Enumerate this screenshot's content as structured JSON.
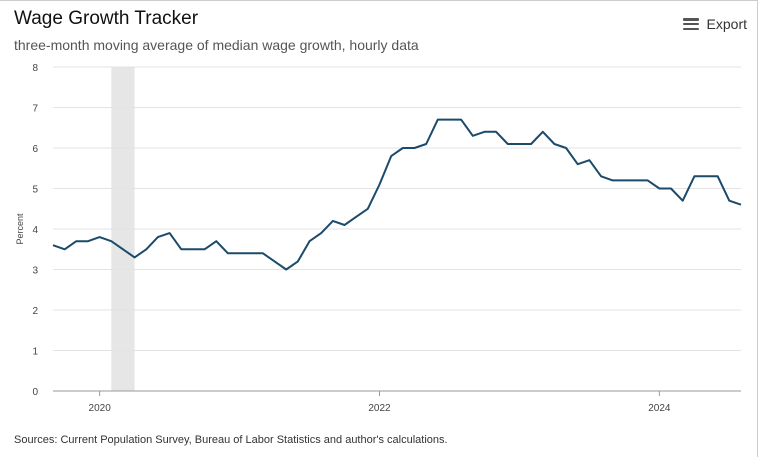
{
  "header": {
    "title": "Wage Growth Tracker",
    "subtitle": "three-month moving average of median wage growth, hourly data",
    "export_label": "Export",
    "export_icon": "hamburger-menu-icon"
  },
  "footer": {
    "source": "Sources: Current Population Survey, Bureau of Labor Statistics and author's calculations."
  },
  "chart_data": {
    "type": "line",
    "title": "Wage Growth Tracker",
    "subtitle": "three-month moving average of median wage growth, hourly data",
    "ylabel": "Percent",
    "xlabel": "",
    "ylim": [
      0,
      8
    ],
    "yticks": [
      0,
      1,
      2,
      3,
      4,
      5,
      6,
      7,
      8
    ],
    "xticks": [
      "2020",
      "2022",
      "2024"
    ],
    "xrange": [
      "2019-09",
      "2024-08"
    ],
    "grid": true,
    "line_color": "#1b4a6b",
    "shaded_band": {
      "start": "2020-02",
      "end": "2020-04",
      "color": "#e6e6e6"
    },
    "start_month": "2019-09",
    "values": [
      3.6,
      3.5,
      3.7,
      3.7,
      3.8,
      3.7,
      3.5,
      3.3,
      3.5,
      3.8,
      3.9,
      3.5,
      3.5,
      3.5,
      3.7,
      3.4,
      3.4,
      3.4,
      3.4,
      3.2,
      3.0,
      3.2,
      3.7,
      3.9,
      4.2,
      4.1,
      4.3,
      4.5,
      5.1,
      5.8,
      6.0,
      6.0,
      6.1,
      6.7,
      6.7,
      6.7,
      6.3,
      6.4,
      6.4,
      6.1,
      6.1,
      6.1,
      6.4,
      6.1,
      6.0,
      5.6,
      5.7,
      5.3,
      5.2,
      5.2,
      5.2,
      5.2,
      5.0,
      5.0,
      4.7,
      5.3,
      5.3,
      5.3,
      4.7,
      4.6
    ]
  }
}
